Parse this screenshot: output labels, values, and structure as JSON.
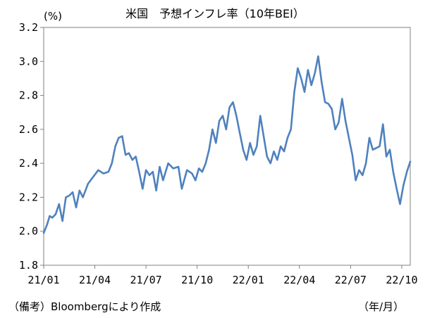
{
  "chart_data": {
    "type": "line",
    "title": "米国　予想インフレ率（10年BEI）",
    "ylabel": "(%)",
    "xlabel": "（年/月）",
    "note": "（備考）Bloombergにより作成",
    "ylim": [
      1.8,
      3.2
    ],
    "yticks": [
      "1.8",
      "2.0",
      "2.2",
      "2.4",
      "2.6",
      "2.8",
      "3.0",
      "3.2"
    ],
    "xticks": [
      "21/01",
      "21/04",
      "21/07",
      "21/10",
      "22/01",
      "22/04",
      "22/07",
      "22/10"
    ],
    "xrange_months": [
      0,
      21.5
    ],
    "grid": false,
    "colors": {
      "line": "#4F81BD",
      "axis": "#808080"
    },
    "series": [
      {
        "x": [
          0,
          0.2,
          0.35,
          0.5,
          0.7,
          0.9,
          1.1,
          1.3,
          1.5,
          1.7,
          1.9,
          2.1,
          2.3,
          2.6,
          2.9,
          3.2,
          3.5,
          3.8,
          4.0,
          4.2,
          4.4,
          4.6,
          4.8,
          5.0,
          5.2,
          5.4,
          5.6,
          5.8,
          6.0,
          6.2,
          6.4,
          6.6,
          6.8,
          7.0,
          7.3,
          7.6,
          7.9,
          8.1,
          8.4,
          8.7,
          8.9,
          9.1,
          9.3,
          9.5,
          9.7,
          9.9,
          10.1,
          10.3,
          10.5,
          10.7,
          10.9,
          11.1,
          11.3,
          11.5,
          11.7,
          11.9,
          12.1,
          12.3,
          12.5,
          12.7,
          12.9,
          13.1,
          13.3,
          13.5,
          13.7,
          13.9,
          14.1,
          14.3,
          14.5,
          14.7,
          14.9,
          15.1,
          15.3,
          15.5,
          15.7,
          15.9,
          16.1,
          16.3,
          16.5,
          16.7,
          16.9,
          17.1,
          17.3,
          17.5,
          17.7,
          17.9,
          18.1,
          18.3,
          18.5,
          18.7,
          18.9,
          19.1,
          19.3,
          19.5,
          19.7,
          19.9,
          20.1,
          20.3,
          20.5,
          20.7,
          20.9,
          21.1,
          21.3,
          21.5
        ],
        "values": [
          1.99,
          2.04,
          2.09,
          2.08,
          2.1,
          2.16,
          2.06,
          2.2,
          2.21,
          2.23,
          2.14,
          2.24,
          2.2,
          2.28,
          2.32,
          2.36,
          2.34,
          2.35,
          2.4,
          2.5,
          2.55,
          2.56,
          2.45,
          2.46,
          2.42,
          2.44,
          2.35,
          2.25,
          2.36,
          2.33,
          2.35,
          2.24,
          2.38,
          2.3,
          2.4,
          2.37,
          2.38,
          2.25,
          2.36,
          2.34,
          2.3,
          2.37,
          2.35,
          2.4,
          2.48,
          2.6,
          2.52,
          2.65,
          2.68,
          2.6,
          2.73,
          2.76,
          2.68,
          2.58,
          2.48,
          2.42,
          2.52,
          2.45,
          2.5,
          2.68,
          2.56,
          2.44,
          2.4,
          2.47,
          2.42,
          2.5,
          2.47,
          2.55,
          2.6,
          2.82,
          2.96,
          2.9,
          2.82,
          2.95,
          2.86,
          2.93,
          3.03,
          2.88,
          2.76,
          2.75,
          2.72,
          2.6,
          2.64,
          2.78,
          2.65,
          2.55,
          2.45,
          2.3,
          2.36,
          2.33,
          2.4,
          2.55,
          2.48,
          2.49,
          2.5,
          2.63,
          2.44,
          2.48,
          2.35,
          2.25,
          2.16,
          2.27,
          2.35,
          2.41
        ]
      }
    ]
  }
}
